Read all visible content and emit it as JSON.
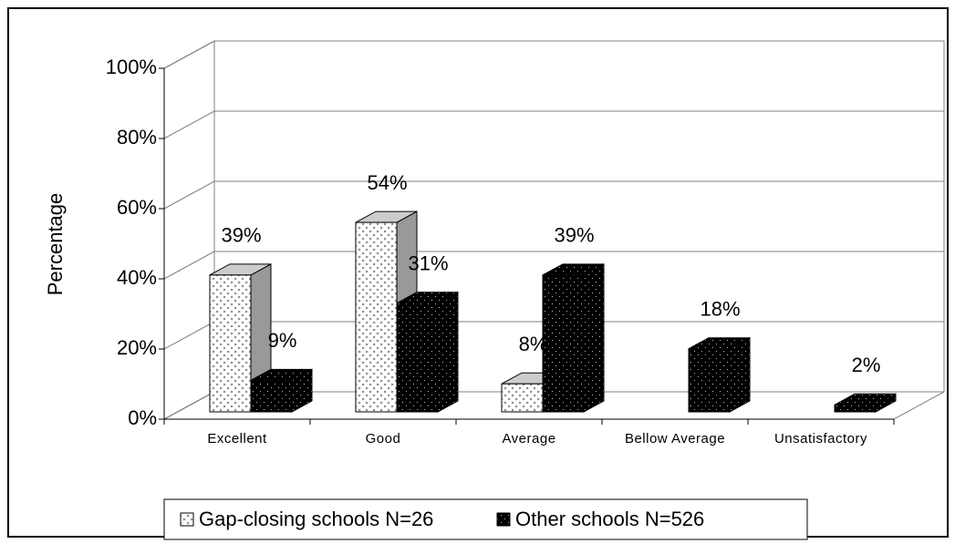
{
  "chart_data": {
    "type": "bar3d",
    "ylabel": "Percentage",
    "categories": [
      "Excellent",
      "Good",
      "Average",
      "Bellow Average",
      "Unsatisfactory"
    ],
    "series": [
      {
        "name": "Gap-closing schools N=26",
        "color": "#ffffff",
        "values": [
          39,
          54,
          8,
          null,
          null
        ],
        "value_labels": [
          "39%",
          "54%",
          "8%",
          null,
          null
        ]
      },
      {
        "name": "Other schools N=526",
        "color": "#000000",
        "values": [
          9,
          31,
          39,
          18,
          2
        ],
        "value_labels": [
          "9%",
          "31%",
          "39%",
          "18%",
          "2%"
        ]
      }
    ],
    "ylim": [
      0,
      100
    ],
    "yticks": [
      {
        "value": 0,
        "label": "0%"
      },
      {
        "value": 20,
        "label": "20%"
      },
      {
        "value": 40,
        "label": "40%"
      },
      {
        "value": 60,
        "label": "60%"
      },
      {
        "value": 80,
        "label": "80%"
      },
      {
        "value": 100,
        "label": "100%"
      }
    ],
    "grid": true,
    "legend": "bottom"
  }
}
